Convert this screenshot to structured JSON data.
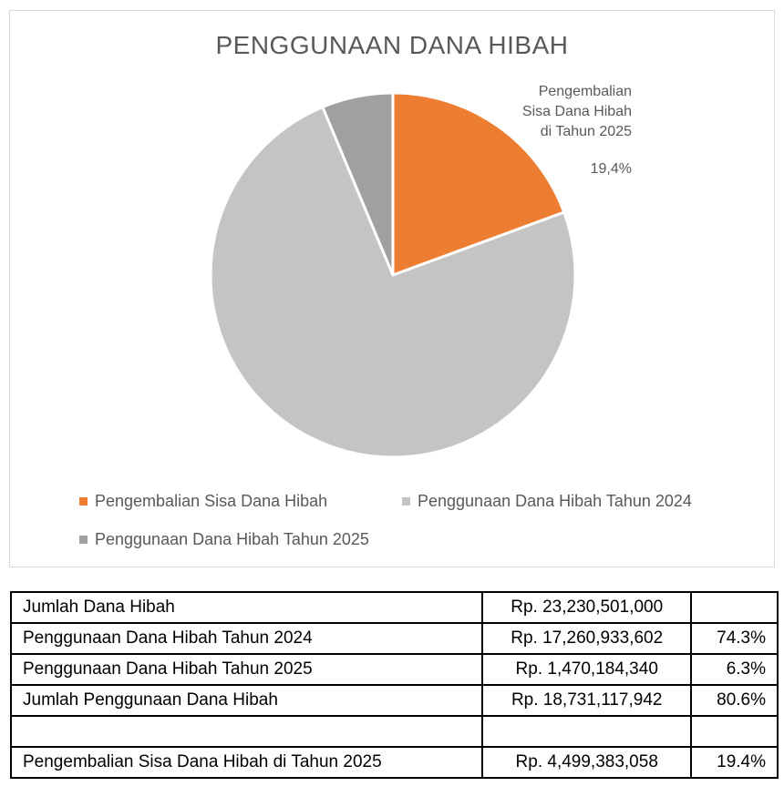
{
  "chart_data": {
    "type": "pie",
    "title": "PENGGUNAAN DANA HIBAH",
    "series": [
      {
        "name": "Pengembalian Sisa Dana Hibah",
        "value": 19.4,
        "color": "#ed7d31"
      },
      {
        "name": "Penggunaan Dana Hibah Tahun 2024",
        "value": 74.3,
        "color": "#c4c4c4"
      },
      {
        "name": "Penggunaan Dana Hibah Tahun 2025",
        "value": 6.3,
        "color": "#a0a0a0"
      }
    ],
    "data_label": {
      "lines": [
        "Pengembalian",
        "Sisa Dana Hibah",
        "di Tahun 2025"
      ],
      "value": "19,4%"
    },
    "legend_position": "bottom"
  },
  "table": {
    "rows": [
      {
        "label": "Jumlah Dana Hibah",
        "amount": "Rp. 23,230,501,000",
        "pct": ""
      },
      {
        "label": "Penggunaan Dana Hibah Tahun 2024",
        "amount": "Rp. 17,260,933,602",
        "pct": "74.3%"
      },
      {
        "label": "Penggunaan Dana Hibah Tahun 2025",
        "amount": "Rp. 1,470,184,340",
        "pct": "6.3%"
      },
      {
        "label": "Jumlah Penggunaan Dana Hibah",
        "amount": "Rp. 18,731,117,942",
        "pct": "80.6%"
      },
      {
        "label": "",
        "amount": "",
        "pct": ""
      },
      {
        "label": "Pengembalian Sisa Dana Hibah di Tahun 2025",
        "amount": "Rp. 4,499,383,058",
        "pct": "19.4%"
      }
    ]
  }
}
